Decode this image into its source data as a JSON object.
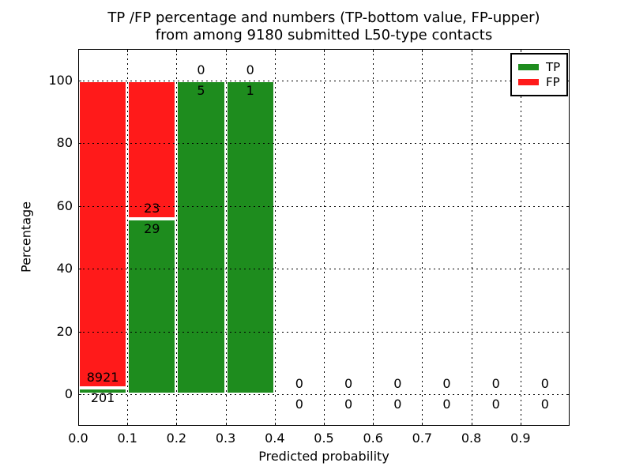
{
  "chart_data": {
    "type": "bar",
    "stacked": true,
    "title": "TP /FP percentage and numbers (TP-bottom value, FP-upper)\nfrom among 9180 submitted L50-type contacts",
    "title_line1": "TP /FP percentage and numbers (TP-bottom value, FP-upper)",
    "title_line2": "from among 9180 submitted L50-type contacts",
    "xlabel": "Predicted probability",
    "ylabel": "Percentage",
    "xlim": [
      0.0,
      1.0
    ],
    "ylim": [
      -10,
      110
    ],
    "xticks": [
      "0.0",
      "0.1",
      "0.2",
      "0.3",
      "0.4",
      "0.5",
      "0.6",
      "0.7",
      "0.8",
      "0.9"
    ],
    "yticks": [
      0,
      20,
      40,
      60,
      80,
      100
    ],
    "grid": "dotted",
    "legend": {
      "position": "upper right",
      "entries": [
        {
          "label": "TP",
          "color": "#1e8c1e"
        },
        {
          "label": "FP",
          "color": "#ff1a1a"
        }
      ]
    },
    "bins": [
      {
        "x_start": 0.0,
        "x_end": 0.1,
        "tp_count": 201,
        "fp_count": 8921,
        "tp_pct": 2.2,
        "fp_pct": 97.8
      },
      {
        "x_start": 0.1,
        "x_end": 0.2,
        "tp_count": 29,
        "fp_count": 23,
        "tp_pct": 55.8,
        "fp_pct": 44.2
      },
      {
        "x_start": 0.2,
        "x_end": 0.3,
        "tp_count": 5,
        "fp_count": 0,
        "tp_pct": 100,
        "fp_pct": 0
      },
      {
        "x_start": 0.3,
        "x_end": 0.4,
        "tp_count": 1,
        "fp_count": 0,
        "tp_pct": 100,
        "fp_pct": 0
      },
      {
        "x_start": 0.4,
        "x_end": 0.5,
        "tp_count": 0,
        "fp_count": 0,
        "tp_pct": 0,
        "fp_pct": 0
      },
      {
        "x_start": 0.5,
        "x_end": 0.6,
        "tp_count": 0,
        "fp_count": 0,
        "tp_pct": 0,
        "fp_pct": 0
      },
      {
        "x_start": 0.6,
        "x_end": 0.7,
        "tp_count": 0,
        "fp_count": 0,
        "tp_pct": 0,
        "fp_pct": 0
      },
      {
        "x_start": 0.7,
        "x_end": 0.8,
        "tp_count": 0,
        "fp_count": 0,
        "tp_pct": 0,
        "fp_pct": 0
      },
      {
        "x_start": 0.8,
        "x_end": 0.9,
        "tp_count": 0,
        "fp_count": 0,
        "tp_pct": 0,
        "fp_pct": 0
      },
      {
        "x_start": 0.9,
        "x_end": 1.0,
        "tp_count": 0,
        "fp_count": 0,
        "tp_pct": 0,
        "fp_pct": 0
      }
    ]
  }
}
